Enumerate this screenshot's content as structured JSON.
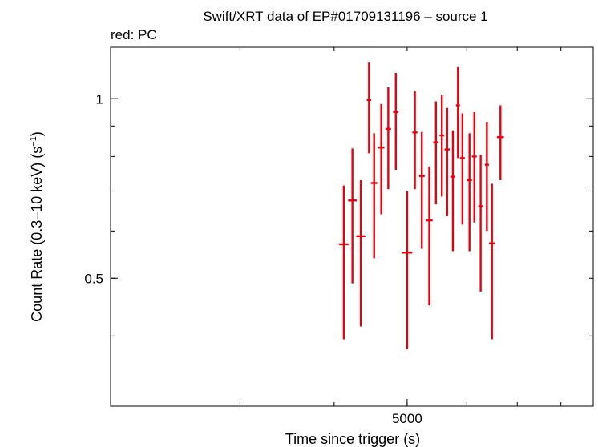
{
  "chart_data": {
    "type": "scatter",
    "title": "Swift/XRT data of EP#01709131196 – source 1",
    "subtitle": "red: PC",
    "xlabel": "Time since trigger (s)",
    "ylabel_main": "Count Rate (0.3–10 keV) (s",
    "ylabel_sup": "−1",
    "ylabel_close": ")",
    "x_scale": "log",
    "y_scale": "log",
    "xlim": [
      2020,
      8830
    ],
    "ylim": [
      0.305,
      1.22
    ],
    "x_ticks": [
      {
        "value": 5000,
        "label": "5000"
      }
    ],
    "y_ticks": [
      {
        "value": 1,
        "label": "1"
      },
      {
        "value": 0.5,
        "label": "0.5"
      }
    ],
    "grid": false,
    "series_color": "#e8000b",
    "series": [
      {
        "name": "PC",
        "points": [
          {
            "x": 4120,
            "y": 0.57,
            "xerr": 60,
            "ylo": 0.395,
            "yhi": 0.715
          },
          {
            "x": 4230,
            "y": 0.675,
            "xerr": 55,
            "ylo": 0.49,
            "yhi": 0.825
          },
          {
            "x": 4340,
            "y": 0.588,
            "xerr": 60,
            "ylo": 0.415,
            "yhi": 0.73
          },
          {
            "x": 4450,
            "y": 0.995,
            "xerr": 30,
            "ylo": 0.81,
            "yhi": 1.15
          },
          {
            "x": 4520,
            "y": 0.722,
            "xerr": 45,
            "ylo": 0.54,
            "yhi": 0.875
          },
          {
            "x": 4620,
            "y": 0.828,
            "xerr": 45,
            "ylo": 0.64,
            "yhi": 0.98
          },
          {
            "x": 4720,
            "y": 0.89,
            "xerr": 40,
            "ylo": 0.705,
            "yhi": 1.045
          },
          {
            "x": 4830,
            "y": 0.95,
            "xerr": 40,
            "ylo": 0.76,
            "yhi": 1.105
          },
          {
            "x": 5000,
            "y": 0.552,
            "xerr": 80,
            "ylo": 0.38,
            "yhi": 0.7
          },
          {
            "x": 5120,
            "y": 0.878,
            "xerr": 40,
            "ylo": 0.705,
            "yhi": 1.03
          },
          {
            "x": 5230,
            "y": 0.742,
            "xerr": 45,
            "ylo": 0.56,
            "yhi": 0.88
          },
          {
            "x": 5350,
            "y": 0.625,
            "xerr": 55,
            "ylo": 0.45,
            "yhi": 0.77
          },
          {
            "x": 5460,
            "y": 0.845,
            "xerr": 45,
            "ylo": 0.665,
            "yhi": 0.99
          },
          {
            "x": 5560,
            "y": 0.868,
            "xerr": 40,
            "ylo": 0.685,
            "yhi": 1.015
          },
          {
            "x": 5650,
            "y": 0.822,
            "xerr": 45,
            "ylo": 0.635,
            "yhi": 0.965
          },
          {
            "x": 5750,
            "y": 0.74,
            "xerr": 45,
            "ylo": 0.555,
            "yhi": 0.885
          },
          {
            "x": 5840,
            "y": 0.975,
            "xerr": 35,
            "ylo": 0.795,
            "yhi": 1.13
          },
          {
            "x": 5920,
            "y": 0.795,
            "xerr": 45,
            "ylo": 0.615,
            "yhi": 0.945
          },
          {
            "x": 6050,
            "y": 0.73,
            "xerr": 45,
            "ylo": 0.555,
            "yhi": 0.875
          },
          {
            "x": 6140,
            "y": 0.8,
            "xerr": 45,
            "ylo": 0.62,
            "yhi": 0.95
          },
          {
            "x": 6260,
            "y": 0.66,
            "xerr": 45,
            "ylo": 0.475,
            "yhi": 0.805
          },
          {
            "x": 6380,
            "y": 0.775,
            "xerr": 40,
            "ylo": 0.6,
            "yhi": 0.915
          },
          {
            "x": 6480,
            "y": 0.572,
            "xerr": 60,
            "ylo": 0.395,
            "yhi": 0.72
          },
          {
            "x": 6650,
            "y": 0.862,
            "xerr": 70,
            "ylo": 0.73,
            "yhi": 0.975
          }
        ]
      }
    ]
  }
}
